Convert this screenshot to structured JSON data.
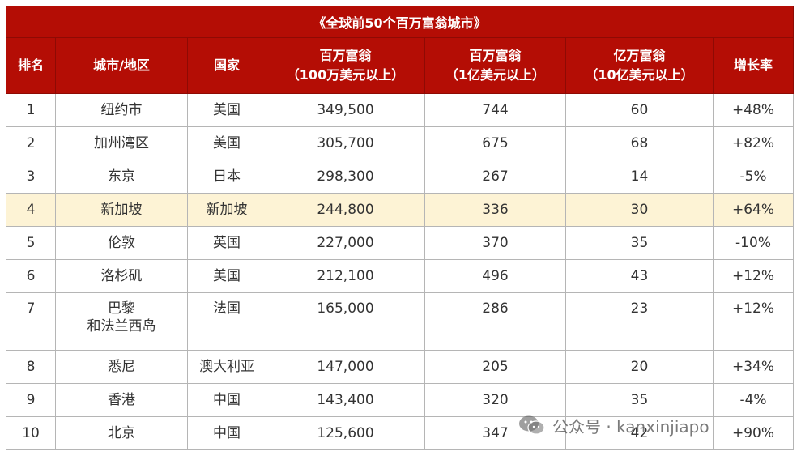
{
  "title": "《全球前50个百万富翁城市》",
  "headers": {
    "rank": "排名",
    "city": "城市/地区",
    "country": "国家",
    "millionaires_l1": "百万富翁",
    "millionaires_l2": "（100万美元以上）",
    "centi_l1": "百万富翁",
    "centi_l2": "（1亿美元以上）",
    "billion_l1": "亿万富翁",
    "billion_l2": "（10亿美元以上）",
    "growth": "增长率"
  },
  "rows": [
    {
      "rank": "1",
      "city": "纽约市",
      "city2": "",
      "country": "美国",
      "millionaires": "349,500",
      "centi": "744",
      "billion": "60",
      "growth": "+48%"
    },
    {
      "rank": "2",
      "city": "加州湾区",
      "city2": "",
      "country": "美国",
      "millionaires": "305,700",
      "centi": "675",
      "billion": "68",
      "growth": "+82%"
    },
    {
      "rank": "3",
      "city": "东京",
      "city2": "",
      "country": "日本",
      "millionaires": "298,300",
      "centi": "267",
      "billion": "14",
      "growth": "-5%"
    },
    {
      "rank": "4",
      "city": "新加坡",
      "city2": "",
      "country": "新加坡",
      "millionaires": "244,800",
      "centi": "336",
      "billion": "30",
      "growth": "+64%"
    },
    {
      "rank": "5",
      "city": "伦敦",
      "city2": "",
      "country": "英国",
      "millionaires": "227,000",
      "centi": "370",
      "billion": "35",
      "growth": "-10%"
    },
    {
      "rank": "6",
      "city": "洛杉矶",
      "city2": "",
      "country": "美国",
      "millionaires": "212,100",
      "centi": "496",
      "billion": "43",
      "growth": "+12%"
    },
    {
      "rank": "7",
      "city": "巴黎",
      "city2": "和法兰西岛",
      "country": "法国",
      "millionaires": "165,000",
      "centi": "286",
      "billion": "23",
      "growth": "+12%"
    },
    {
      "rank": "8",
      "city": "悉尼",
      "city2": "",
      "country": "澳大利亚",
      "millionaires": "147,000",
      "centi": "205",
      "billion": "20",
      "growth": "+34%"
    },
    {
      "rank": "9",
      "city": "香港",
      "city2": "",
      "country": "中国",
      "millionaires": "143,400",
      "centi": "320",
      "billion": "35",
      "growth": "-4%"
    },
    {
      "rank": "10",
      "city": "北京",
      "city2": "",
      "country": "中国",
      "millionaires": "125,600",
      "centi": "347",
      "billion": "42",
      "growth": "+90%"
    }
  ],
  "watermark": "公众号 · kanxinjiapo",
  "colors": {
    "header_bg": "#b40d05",
    "header_text": "#ffffff",
    "highlight_row": "#fdf3d5",
    "grid": "#b5b5b5"
  }
}
